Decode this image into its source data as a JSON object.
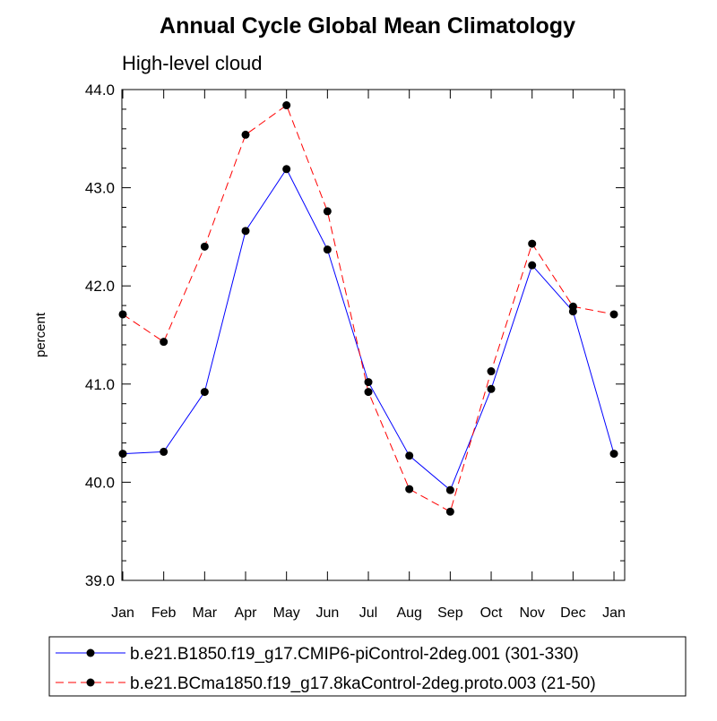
{
  "chart_data": {
    "type": "line",
    "title": "Annual Cycle Global Mean Climatology",
    "subtitle": "High-level cloud",
    "xlabel": "",
    "ylabel": "percent",
    "ylim": [
      39.0,
      44.0
    ],
    "yticks": [
      "39.0",
      "40.0",
      "41.0",
      "42.0",
      "43.0",
      "44.0"
    ],
    "categories": [
      "Jan",
      "Feb",
      "Mar",
      "Apr",
      "May",
      "Jun",
      "Jul",
      "Aug",
      "Sep",
      "Oct",
      "Nov",
      "Dec",
      "Jan"
    ],
    "legend_position": "bottom",
    "series": [
      {
        "name": "b.e21.B1850.f19_g17.CMIP6-piControl-2deg.001 (301-330)",
        "color": "#0000ff",
        "dash": "solid",
        "values": [
          40.29,
          40.31,
          40.92,
          42.56,
          43.19,
          42.37,
          41.02,
          40.27,
          39.92,
          40.95,
          42.21,
          41.74,
          40.29
        ]
      },
      {
        "name": "b.e21.BCma1850.f19_g17.8kaControl-2deg.proto.003 (21-50)",
        "color": "#ff0000",
        "dash": "dashed",
        "values": [
          41.71,
          41.43,
          42.4,
          43.54,
          43.84,
          42.76,
          40.92,
          39.93,
          39.7,
          41.13,
          42.43,
          41.79,
          41.71
        ]
      }
    ]
  }
}
